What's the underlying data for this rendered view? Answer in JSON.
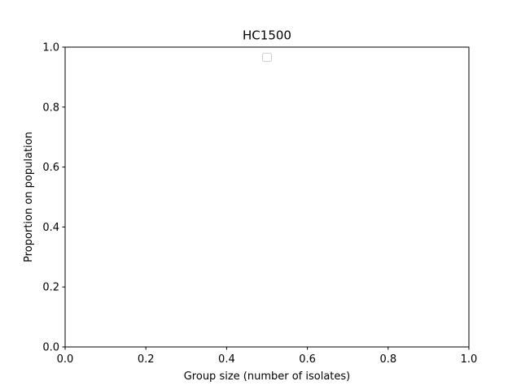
{
  "chart_data": {
    "type": "line",
    "title": "HC1500",
    "xlabel": "Group size (number of isolates)",
    "ylabel": "Proportion on population",
    "xlim": [
      0.0,
      1.0
    ],
    "ylim": [
      0.0,
      1.0
    ],
    "xticks": [
      0.0,
      0.2,
      0.4,
      0.6,
      0.8,
      1.0
    ],
    "yticks": [
      0.0,
      0.2,
      0.4,
      0.6,
      0.8,
      1.0
    ],
    "xtick_labels": [
      "0.0",
      "0.2",
      "0.4",
      "0.6",
      "0.8",
      "1.0"
    ],
    "ytick_labels": [
      "0.0",
      "0.2",
      "0.4",
      "0.6",
      "0.8",
      "1.0"
    ],
    "series": [],
    "grid": false,
    "legend": {
      "placement": "upper center",
      "entries": []
    }
  }
}
